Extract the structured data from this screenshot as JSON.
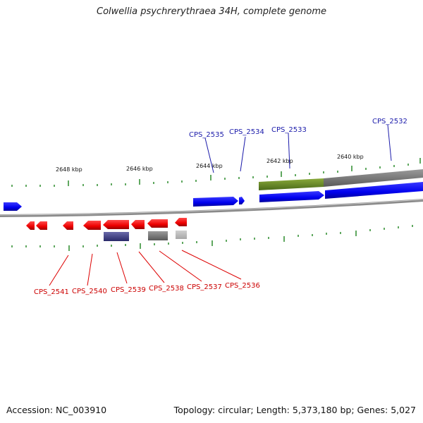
{
  "title": "Colwellia psychrerythraea 34H, complete genome",
  "footer": {
    "accession": "Accession: NC_003910",
    "info": "Topology: circular; Length: 5,373,180 bp; Genes: 5,027"
  },
  "colors": {
    "forward_gene": "#0000ee",
    "reverse_gene": "#ee0000",
    "tick": "#2a8a2a",
    "backbone": "#808080",
    "forward_label": "#1a1aaa",
    "reverse_label": "#cc0000"
  },
  "scale_labels": [
    "2648 kbp",
    "2646 kbp",
    "2644 kbp",
    "2642 kbp",
    "2640 kbp"
  ],
  "forward_labels": [
    "CPS_2535",
    "CPS_2534",
    "CPS_2533",
    "CPS_2532"
  ],
  "reverse_labels": [
    "CPS_2541",
    "CPS_2540",
    "CPS_2539",
    "CPS_2538",
    "CPS_2537",
    "CPS_2536"
  ]
}
